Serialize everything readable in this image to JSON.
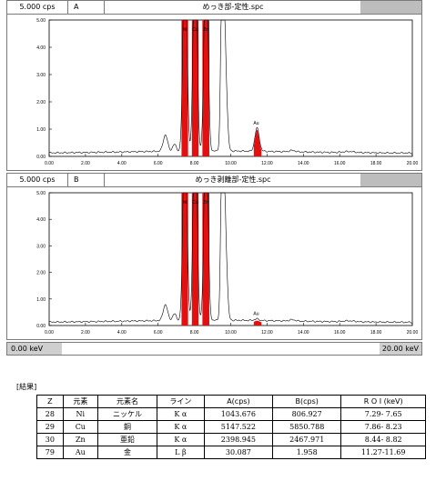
{
  "panel_a": {
    "cps_label": "5.000 cps",
    "id_label": "A",
    "filename": "めっき部-定性.spc",
    "peak_label": "Au",
    "roi_labels": [
      "Ni",
      "Cu",
      "Zn"
    ]
  },
  "panel_b": {
    "cps_label": "5.000 cps",
    "id_label": "B",
    "filename": "めっき剥離部-定性.spc",
    "peak_label": "Au",
    "roi_labels": [
      "Ni",
      "Cu",
      "Zn"
    ]
  },
  "y_ticks": [
    "5.00",
    "4.00",
    "3.00",
    "2.00",
    "1.00",
    "0.00"
  ],
  "x_ticks": [
    "0.00",
    "2.00",
    "4.00",
    "6.00",
    "8.00",
    "10.00",
    "12.00",
    "14.00",
    "16.00",
    "18.00",
    "20.00"
  ],
  "energy_bar": {
    "left": "0.00 keV",
    "right": "20.00 keV"
  },
  "results": {
    "title": "[結果]",
    "headers": [
      "Z",
      "元素",
      "元素名",
      "ライン",
      "A(cps)",
      "B(cps)",
      "R O I (keV)"
    ],
    "rows": [
      [
        "28",
        "Ni",
        "ニッケル",
        "K α",
        "1043.676",
        "806.927",
        "7.29- 7.65"
      ],
      [
        "29",
        "Cu",
        "銅",
        "K α",
        "5147.522",
        "5850.788",
        "7.86- 8.23"
      ],
      [
        "30",
        "Zn",
        "亜鉛",
        "K α",
        "2398.945",
        "2467.971",
        "8.44- 8.82"
      ],
      [
        "79",
        "Au",
        "金",
        "L β",
        "30.087",
        "1.958",
        "11.27-11.69"
      ]
    ]
  },
  "colors": {
    "roi_red": "#e41010",
    "spectrum": "#000000",
    "gray": "#bdbdbd"
  }
}
